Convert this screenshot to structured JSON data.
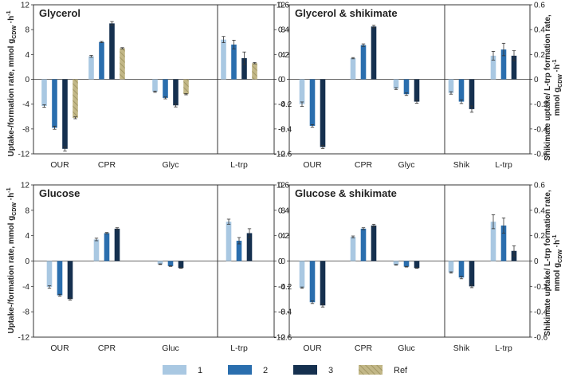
{
  "chart_data": {
    "type": "bar",
    "series_names": [
      "1",
      "2",
      "3",
      "Ref"
    ],
    "colors": {
      "1": "#a9c8e2",
      "2": "#2a6eae",
      "3": "#15304f",
      "Ref": "#c2b787"
    },
    "left_axis": {
      "label": "Uptake-/formation rate, mmol g",
      "label_sub": "CDW",
      "label_tail": "h",
      "ylim": [
        -12,
        12
      ],
      "ticks": [
        "-12",
        "-8",
        "-4",
        "0",
        "4",
        "8",
        "12"
      ]
    },
    "right_axis": {
      "label_line1": "Shikimate uptake/ L-trp formation rate,",
      "label_line2_pre": "mmol g",
      "label_line2_sub": "CDW",
      "label_line2_tail": "h",
      "ylim": [
        -0.6,
        0.6
      ],
      "ticks": [
        "-0.6",
        "-0.4",
        "-0.2",
        "0",
        "0.2",
        "0.4",
        "0.6"
      ]
    },
    "legend": [
      "1",
      "2",
      "3",
      "Ref"
    ],
    "panels": [
      {
        "title": "Glycerol",
        "left_groups": [
          {
            "label": "OUR",
            "values": [
              -4.3,
              -7.8,
              -11.2,
              -6.2
            ],
            "errors": [
              0.2,
              0.25,
              0.35,
              0.15
            ]
          },
          {
            "label": "CPR",
            "values": [
              3.7,
              6.0,
              9.0,
              5.0
            ],
            "errors": [
              0.15,
              0.1,
              0.3,
              0.1
            ]
          },
          {
            "label": "Glyc",
            "values": [
              -2.0,
              -3.0,
              -4.2,
              -2.4
            ],
            "errors": [
              0.1,
              0.15,
              0.25,
              0.1
            ]
          }
        ],
        "right_groups": [
          {
            "label": "L-trp",
            "values": [
              0.32,
              0.28,
              0.17,
              0.13
            ],
            "errors": [
              0.025,
              0.035,
              0.05,
              0.005
            ]
          }
        ]
      },
      {
        "title": "Glycerol & shikimate",
        "left_groups": [
          {
            "label": "OUR",
            "values": [
              -4.0,
              -7.5,
              -10.9
            ],
            "errors": [
              0.35,
              0.2,
              0.25
            ]
          },
          {
            "label": "CPR",
            "values": [
              3.4,
              5.5,
              8.5
            ],
            "errors": [
              0.1,
              0.2,
              0.2
            ]
          },
          {
            "label": "Glyc",
            "values": [
              -1.5,
              -2.4,
              -3.6
            ],
            "errors": [
              0.15,
              0.2,
              0.25
            ]
          }
        ],
        "right_groups": [
          {
            "label": "Shik",
            "values": [
              -0.11,
              -0.18,
              -0.24
            ],
            "errors": [
              0.01,
              0.015,
              0.025
            ]
          },
          {
            "label": "L-trp",
            "values": [
              0.19,
              0.24,
              0.19
            ],
            "errors": [
              0.035,
              0.05,
              0.04
            ]
          }
        ]
      },
      {
        "title": "Glucose",
        "left_groups": [
          {
            "label": "OUR",
            "values": [
              -4.1,
              -5.4,
              -6.0
            ],
            "errors": [
              0.2,
              0.15,
              0.15
            ]
          },
          {
            "label": "CPR",
            "values": [
              3.4,
              4.4,
              5.1
            ],
            "errors": [
              0.2,
              0.1,
              0.15
            ]
          },
          {
            "label": "Gluc",
            "values": [
              -0.5,
              -0.8,
              -1.1
            ],
            "errors": [
              0.05,
              0.05,
              0.05
            ]
          }
        ],
        "right_groups": [
          {
            "label": "L-trp",
            "values": [
              0.31,
              0.16,
              0.22
            ],
            "errors": [
              0.02,
              0.025,
              0.035
            ]
          }
        ]
      },
      {
        "title": "Glucose & shikimate",
        "left_groups": [
          {
            "label": "OUR",
            "values": [
              -4.2,
              -6.5,
              -7.0
            ],
            "errors": [
              0.1,
              0.2,
              0.25
            ]
          },
          {
            "label": "CPR",
            "values": [
              3.8,
              5.1,
              5.6
            ],
            "errors": [
              0.15,
              0.15,
              0.2
            ]
          },
          {
            "label": "Gluc",
            "values": [
              -0.6,
              -0.9,
              -1.1
            ],
            "errors": [
              0.05,
              0.05,
              0.05
            ]
          }
        ],
        "right_groups": [
          {
            "label": "Shik",
            "values": [
              -0.09,
              -0.13,
              -0.2
            ],
            "errors": [
              0.005,
              0.01,
              0.01
            ]
          },
          {
            "label": "L-trp",
            "values": [
              0.31,
              0.28,
              0.08
            ],
            "errors": [
              0.055,
              0.06,
              0.04
            ]
          }
        ]
      }
    ]
  }
}
